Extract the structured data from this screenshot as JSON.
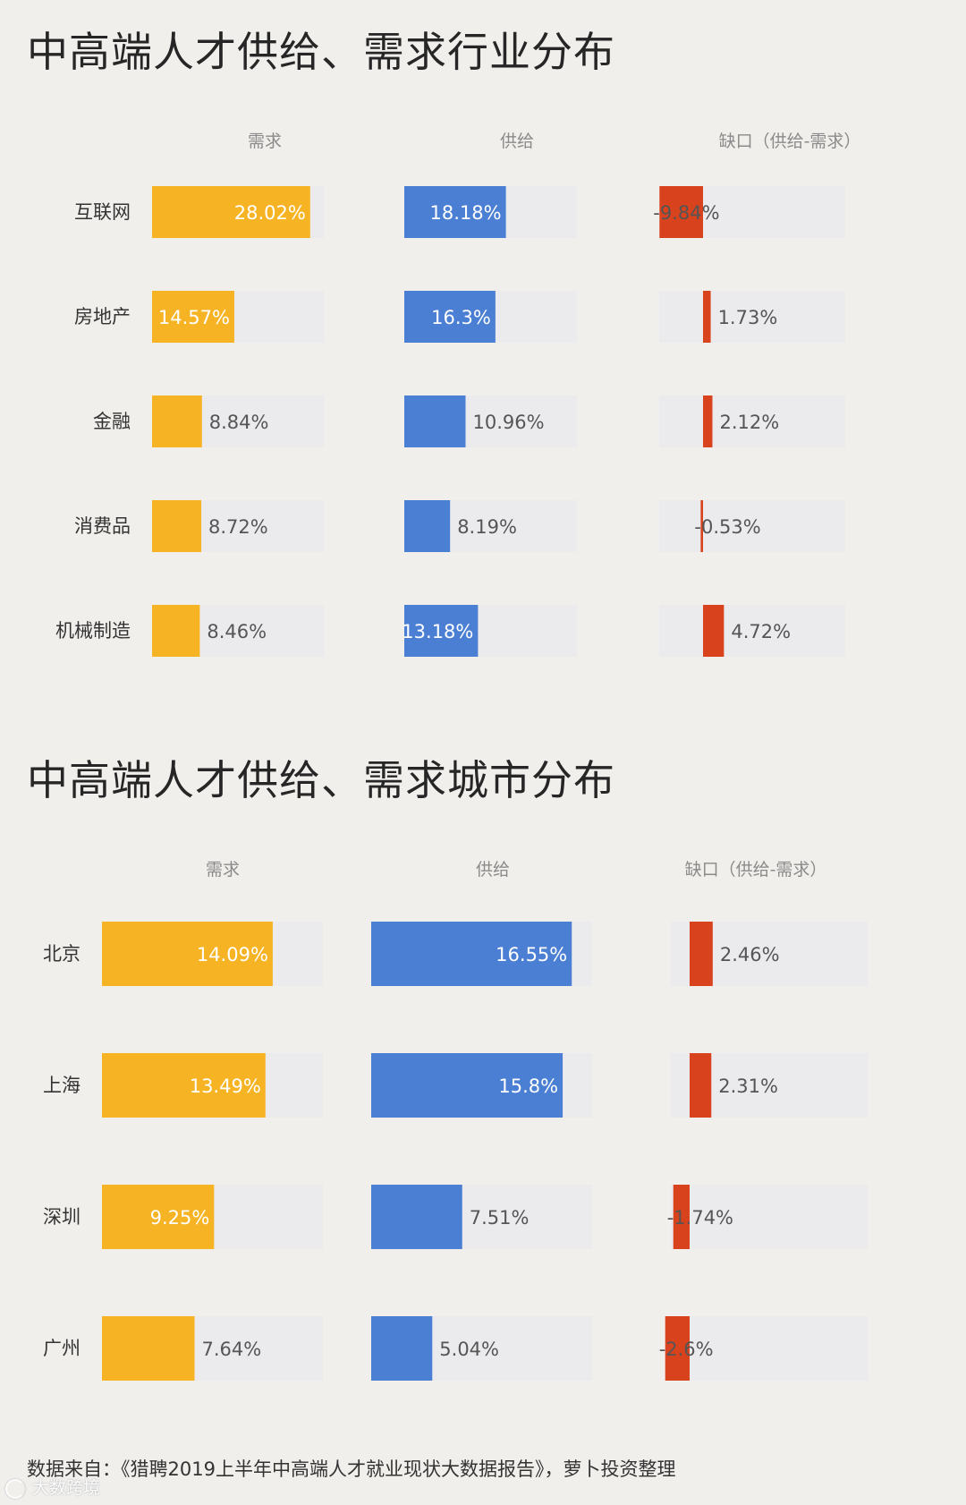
{
  "industry": {
    "title": "中高端人才供给、需求行业分布",
    "headers": [
      "需求",
      "供给",
      "缺口（供给-需求）"
    ]
  },
  "city": {
    "title": "中高端人才供给、需求城市分布",
    "headers": [
      "需求",
      "供给",
      "缺口（供给-需求）"
    ]
  },
  "source": "数据来自：《猎聘2019上半年中高端人才就业现状大数据报告》，萝卜投资整理",
  "watermark": "大数跨境",
  "colors": {
    "demand": "#f6b324",
    "supply": "#4a7fd3",
    "gap": "#d8431d",
    "track": "#ebebee"
  },
  "chart_data": [
    {
      "type": "bar",
      "title": "中高端人才供给、需求行业分布",
      "categories": [
        "互联网",
        "房地产",
        "金融",
        "消费品",
        "机械制造"
      ],
      "series": [
        {
          "name": "需求",
          "values": [
            28.02,
            14.57,
            8.84,
            8.72,
            8.46
          ],
          "labels": [
            "28.02%",
            "14.57%",
            "8.84%",
            "8.72%",
            "8.46%"
          ]
        },
        {
          "name": "供给",
          "values": [
            18.18,
            16.3,
            10.96,
            8.19,
            13.18
          ],
          "labels": [
            "18.18%",
            "16.3%",
            "10.96%",
            "8.19%",
            "13.18%"
          ]
        },
        {
          "name": "缺口（供给-需求）",
          "values": [
            -9.84,
            1.73,
            2.12,
            -0.53,
            4.72
          ],
          "labels": [
            "-9.84%",
            "1.73%",
            "2.12%",
            "-0.53%",
            "4.72%"
          ]
        }
      ]
    },
    {
      "type": "bar",
      "title": "中高端人才供给、需求城市分布",
      "categories": [
        "北京",
        "上海",
        "深圳",
        "广州"
      ],
      "series": [
        {
          "name": "需求",
          "values": [
            14.09,
            13.49,
            9.25,
            7.64
          ],
          "labels": [
            "14.09%",
            "13.49%",
            "9.25%",
            "7.64%"
          ]
        },
        {
          "name": "供给",
          "values": [
            16.55,
            15.8,
            7.51,
            5.04
          ],
          "labels": [
            "16.55%",
            "15.8%",
            "7.51%",
            "5.04%"
          ]
        },
        {
          "name": "缺口（供给-需求）",
          "values": [
            2.46,
            2.31,
            -1.74,
            -2.6
          ],
          "labels": [
            "2.46%",
            "2.31%",
            "-1.74%",
            "-2.6%"
          ]
        }
      ]
    }
  ]
}
